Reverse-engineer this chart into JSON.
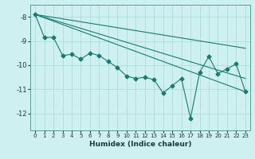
{
  "xlabel": "Humidex (Indice chaleur)",
  "background_color": "#cff0f0",
  "grid_color": "#a8d8d8",
  "line_color": "#1a7a6e",
  "xlim": [
    -0.5,
    23.5
  ],
  "ylim": [
    -12.7,
    -7.5
  ],
  "xticks": [
    0,
    1,
    2,
    3,
    4,
    5,
    6,
    7,
    8,
    9,
    10,
    11,
    12,
    13,
    14,
    15,
    16,
    17,
    18,
    19,
    20,
    21,
    22,
    23
  ],
  "yticks": [
    -12,
    -11,
    -10,
    -9,
    -8
  ],
  "series1_x": [
    0,
    1,
    2,
    3,
    4,
    5,
    6,
    7,
    8,
    9,
    10,
    11,
    12,
    13,
    14,
    15,
    16,
    17,
    18,
    19,
    20,
    21,
    22,
    23
  ],
  "series1_y": [
    -7.9,
    -8.85,
    -8.85,
    -9.6,
    -9.55,
    -9.75,
    -9.5,
    -9.6,
    -9.85,
    -10.1,
    -10.45,
    -10.55,
    -10.5,
    -10.6,
    -11.15,
    -10.85,
    -10.55,
    -12.2,
    -10.3,
    -9.65,
    -10.35,
    -10.15,
    -9.95,
    -11.1
  ],
  "trend1_x": [
    0,
    23
  ],
  "trend1_y": [
    -7.9,
    -9.3
  ],
  "trend2_x": [
    0,
    23
  ],
  "trend2_y": [
    -7.9,
    -10.55
  ],
  "trend3_x": [
    0,
    23
  ],
  "trend3_y": [
    -7.9,
    -11.1
  ]
}
